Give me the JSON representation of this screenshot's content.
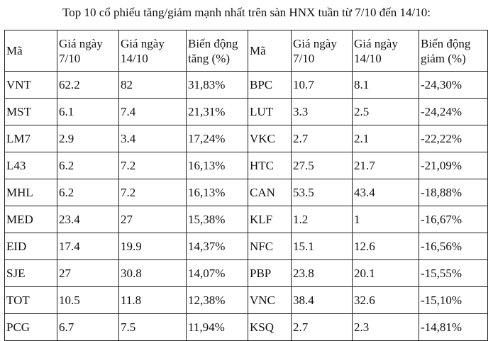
{
  "title": "Top 10 cổ phiếu tăng/giảm mạnh nhất trên sàn HNX tuần từ 7/10 đến 14/10:",
  "headers": [
    "Mã",
    "Giá ngày 7/10",
    "Giá ngày 14/10",
    "Biến động tăng (%)",
    "Mã",
    "Giá ngày 7/10",
    "Giá ngày 14/10",
    "Biến động giảm (%)"
  ],
  "rows": [
    [
      "VNT",
      "62.2",
      "82",
      "31,83%",
      "BPC",
      "10.7",
      "8.1",
      "-24,30%"
    ],
    [
      "MST",
      "6.1",
      "7.4",
      "21,31%",
      "LUT",
      "3.3",
      "2.5",
      "-24,24%"
    ],
    [
      "LM7",
      "2.9",
      "3.4",
      "17,24%",
      "VKC",
      "2.7",
      "2.1",
      "-22,22%"
    ],
    [
      "L43",
      "6.2",
      "7.2",
      "16,13%",
      "HTC",
      "27.5",
      "21.7",
      "-21,09%"
    ],
    [
      "MHL",
      "6.2",
      "7.2",
      "16,13%",
      "CAN",
      "53.5",
      "43.4",
      "-18,88%"
    ],
    [
      "MED",
      "23.4",
      "27",
      "15,38%",
      "KLF",
      "1.2",
      "1",
      "-16,67%"
    ],
    [
      "EID",
      "17.4",
      "19.9",
      "14,37%",
      "NFC",
      "15.1",
      "12.6",
      "-16,56%"
    ],
    [
      "SJE",
      "27",
      "30.8",
      "14,07%",
      "PBP",
      "23.8",
      "20.1",
      "-15,55%"
    ],
    [
      "TOT",
      "10.5",
      "11.8",
      "12,38%",
      "VNC",
      "38.4",
      "32.6",
      "-15,10%"
    ],
    [
      "PCG",
      "6.7",
      "7.5",
      "11,94%",
      "KSQ",
      "2.7",
      "2.3",
      "-14,81%"
    ]
  ]
}
